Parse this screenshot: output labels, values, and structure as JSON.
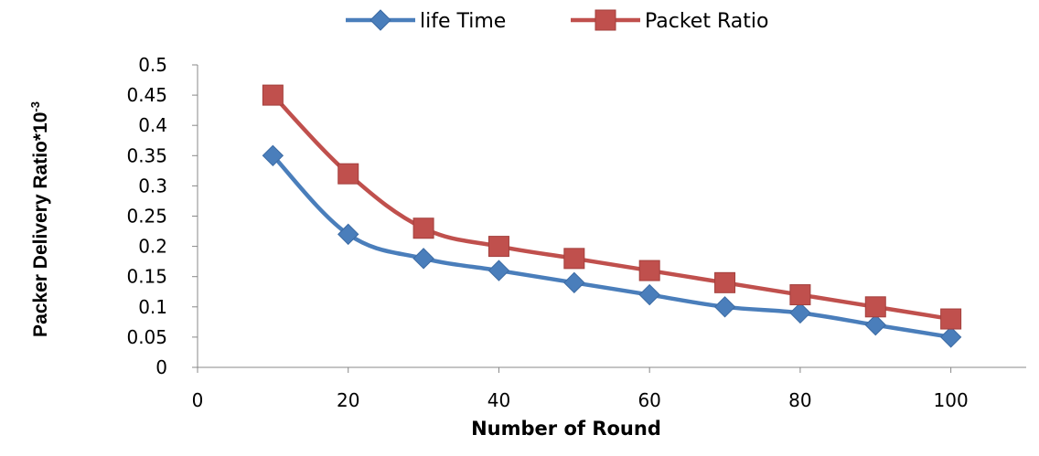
{
  "chart_data": {
    "type": "line",
    "title": "",
    "xlabel": "Number of Round",
    "ylabel": "Packer Delivery Ratio*10",
    "ylabel_superscript": "-3",
    "xlim": [
      0,
      110
    ],
    "ylim": [
      0,
      0.5
    ],
    "x_ticks": [
      "0",
      "20",
      "40",
      "60",
      "80",
      "100"
    ],
    "y_ticks": [
      "0",
      "0.05",
      "0.1",
      "0.15",
      "0.2",
      "0.25",
      "0.3",
      "0.35",
      "0.4",
      "0.45",
      "0.5"
    ],
    "grid": false,
    "legend_position": "top",
    "series": [
      {
        "name": "life Time",
        "color": "#4a7ebb",
        "marker": "diamond",
        "x": [
          10,
          20,
          30,
          40,
          50,
          60,
          70,
          80,
          90,
          100
        ],
        "y": [
          0.35,
          0.22,
          0.18,
          0.16,
          0.14,
          0.12,
          0.1,
          0.09,
          0.07,
          0.05
        ]
      },
      {
        "name": "Packet Ratio",
        "color": "#c0504d",
        "marker": "square",
        "x": [
          10,
          20,
          30,
          40,
          50,
          60,
          70,
          80,
          90,
          100
        ],
        "y": [
          0.45,
          0.32,
          0.23,
          0.2,
          0.18,
          0.16,
          0.14,
          0.12,
          0.1,
          0.08
        ]
      }
    ]
  }
}
